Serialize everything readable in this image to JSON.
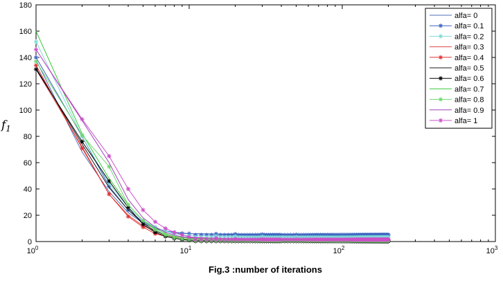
{
  "chart_data": {
    "type": "line",
    "xlabel": "Fig.3 :number of iterations",
    "ylabel": "f",
    "ylabel_subscript": "1",
    "xscale": "log",
    "xlim": [
      1,
      1000
    ],
    "ylim": [
      0,
      180
    ],
    "xticks": [
      {
        "value": 1,
        "base": "10",
        "exp": "0"
      },
      {
        "value": 10,
        "base": "10",
        "exp": "1"
      },
      {
        "value": 100,
        "base": "10",
        "exp": "2"
      },
      {
        "value": 1000,
        "base": "10",
        "exp": "3"
      }
    ],
    "yticks": [
      0,
      20,
      40,
      60,
      80,
      100,
      120,
      140,
      160,
      180
    ],
    "grid": false,
    "legend_position": "top-right",
    "x": [
      1,
      2,
      3,
      4,
      5,
      6,
      7,
      8,
      9,
      10,
      15,
      20,
      30,
      50,
      100,
      200
    ],
    "series": [
      {
        "name": "alfa= 0",
        "color": "#4f6db8",
        "marker": "none",
        "values": [
          138,
          68,
          38,
          22,
          14,
          10,
          8,
          7,
          6.5,
          6,
          5.8,
          5.6,
          5.5,
          5.4,
          5.2,
          5.0
        ]
      },
      {
        "name": "alfa= 0.1",
        "color": "#3b62c0",
        "marker": "star",
        "values": [
          140,
          80,
          42,
          24,
          15,
          10,
          8,
          7,
          6.2,
          6,
          5.8,
          5.6,
          5.4,
          5.2,
          5.0,
          5.0
        ]
      },
      {
        "name": "alfa= 0.2",
        "color": "#7fd8d8",
        "marker": "star",
        "values": [
          152,
          80,
          44,
          26,
          16,
          11,
          8,
          6,
          5,
          4.5,
          4.2,
          4,
          3.8,
          3.6,
          3.4,
          3.2
        ]
      },
      {
        "name": "alfa= 0.3",
        "color": "#e04545",
        "marker": "none",
        "values": [
          131,
          72,
          36,
          20,
          12,
          8,
          5,
          3.5,
          3,
          2.5,
          2.2,
          2,
          1.8,
          1.6,
          1.5,
          1.5
        ]
      },
      {
        "name": "alfa= 0.4",
        "color": "#e03030",
        "marker": "star",
        "values": [
          134,
          71,
          36,
          19,
          11,
          6,
          4,
          2.5,
          2,
          1.5,
          1.3,
          1.2,
          1.2,
          1.1,
          1.0,
          1.0
        ]
      },
      {
        "name": "alfa= 0.5",
        "color": "#1a1a1a",
        "marker": "none",
        "values": [
          132,
          74,
          41,
          24,
          14,
          8,
          5,
          3,
          2,
          1.5,
          1.2,
          1,
          0.8,
          0.6,
          0.5,
          0.5
        ]
      },
      {
        "name": "alfa= 0.6",
        "color": "#000000",
        "marker": "star",
        "values": [
          131,
          76,
          46,
          26,
          13,
          7,
          4,
          2.5,
          1.5,
          1,
          0.8,
          0.6,
          0.5,
          0.4,
          0.3,
          0.3
        ]
      },
      {
        "name": "alfa= 0.7",
        "color": "#3cc83c",
        "marker": "none",
        "values": [
          160,
          82,
          48,
          28,
          16,
          10,
          6,
          4,
          3,
          2.5,
          2,
          1.8,
          1.6,
          1.4,
          1.2,
          1.0
        ]
      },
      {
        "name": "alfa= 0.8",
        "color": "#6cd86c",
        "marker": "star",
        "values": [
          137,
          81,
          57,
          28,
          16,
          9,
          5,
          3,
          2,
          1.5,
          1.2,
          1,
          1,
          0.9,
          0.8,
          0.8
        ]
      },
      {
        "name": "alfa= 0.9",
        "color": "#a040c0",
        "marker": "none",
        "values": [
          146,
          92,
          60,
          32,
          18,
          11,
          7,
          5,
          3.5,
          3,
          2.5,
          2.2,
          2,
          1.8,
          1.6,
          1.5
        ]
      },
      {
        "name": "alfa= 1",
        "color": "#cc4fc8",
        "marker": "star",
        "values": [
          146,
          93,
          65,
          40,
          24,
          15,
          10,
          7,
          5,
          3.5,
          2.5,
          2,
          1.8,
          1.6,
          1.5,
          1.5
        ]
      }
    ]
  }
}
